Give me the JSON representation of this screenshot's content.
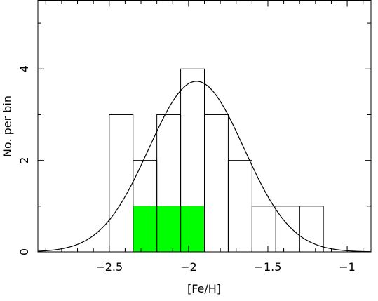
{
  "chart_data": {
    "type": "bar",
    "title": "",
    "xlabel": "[Fe/H]",
    "ylabel": "No. per bin",
    "xlim": [
      -2.95,
      -0.85
    ],
    "ylim": [
      0,
      5.5
    ],
    "x_ticks": [
      -2.5,
      -2,
      -1.5,
      -1
    ],
    "x_tick_labels": [
      "−2.5",
      "−2",
      "−1.5",
      "−1"
    ],
    "y_ticks": [
      0,
      2,
      4
    ],
    "y_tick_labels": [
      "0",
      "2",
      "4"
    ],
    "grid": false,
    "bin_width": 0.15,
    "series": [
      {
        "values": [
          {
            "x0": -2.5,
            "x1": -2.35,
            "count": 3
          },
          {
            "x0": -2.35,
            "x1": -2.2,
            "count": 2
          },
          {
            "x0": -2.2,
            "x1": -2.05,
            "count": 3
          },
          {
            "x0": -2.05,
            "x1": -1.9,
            "count": 4
          },
          {
            "x0": -1.9,
            "x1": -1.75,
            "count": 3
          },
          {
            "x0": -1.75,
            "x1": -1.6,
            "count": 2
          },
          {
            "x0": -1.6,
            "x1": -1.45,
            "count": 1
          },
          {
            "x0": -1.45,
            "x1": -1.3,
            "count": 1
          },
          {
            "x0": -1.3,
            "x1": -1.15,
            "count": 1
          }
        ]
      },
      {
        "values": [
          {
            "x0": -2.35,
            "x1": -2.2,
            "count": 1
          },
          {
            "x0": -2.2,
            "x1": -2.05,
            "count": 1
          },
          {
            "x0": -2.05,
            "x1": -1.9,
            "count": 1
          }
        ],
        "color": "#00ff00"
      }
    ],
    "gaussian_fit": {
      "mean": -1.95,
      "sigma": 0.3,
      "peak": 3.73
    }
  }
}
